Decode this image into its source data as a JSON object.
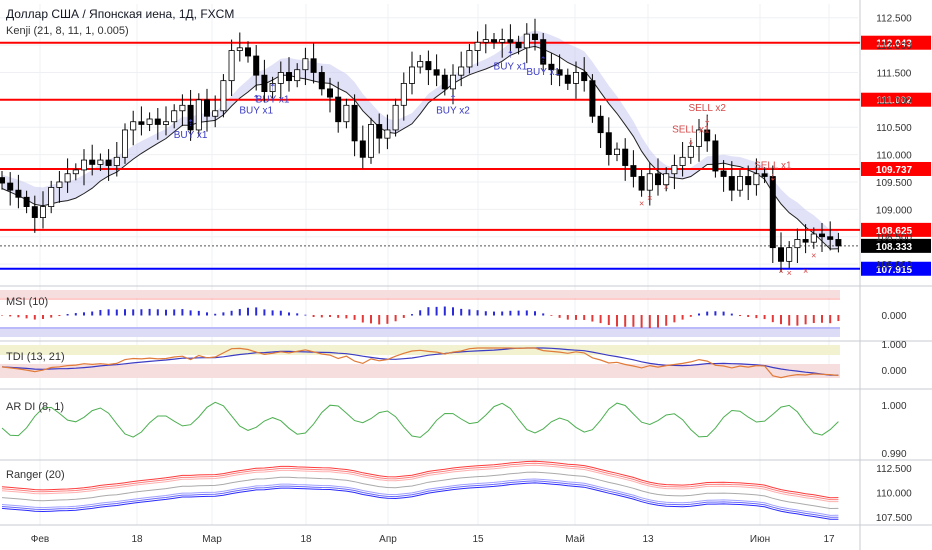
{
  "header": {
    "symbol_title": "Доллар США / Японская иена, 1Д, FXCM",
    "indicator_label": "Kenji (21, 8, 11, 1, 0.005)"
  },
  "colors": {
    "up_candle": "#ffffff",
    "down_candle": "#000000",
    "level_line": "#ff0000",
    "support_line": "#0000ff",
    "cloud_fill": "#c8c8f0",
    "price_label_bg_red": "#ff0000",
    "price_label_bg_blue": "#0000ff",
    "current_label_bg": "#000000"
  },
  "chart_data": [
    {
      "type": "candlestick",
      "title": "Доллар США / Японская иена, 1Д, FXCM",
      "x_ticks": [
        "Фев",
        "18",
        "Мар",
        "18",
        "Апр",
        "15",
        "Май",
        "13",
        "Июн",
        "17"
      ],
      "y_ticks": [
        112.5,
        112.0,
        111.5,
        111.0,
        110.5,
        110.0,
        109.5,
        109.0,
        108.5,
        108.0
      ],
      "ylim": [
        107.6,
        112.75
      ],
      "price_levels": [
        {
          "value": 112.043,
          "label": "112.043",
          "color": "#ff0000"
        },
        {
          "value": 111.002,
          "label": "111.002",
          "color": "#ff0000"
        },
        {
          "value": 109.737,
          "label": "109.737",
          "color": "#ff0000"
        },
        {
          "value": 108.625,
          "label": "108.625",
          "color": "#ff0000"
        },
        {
          "value": 107.915,
          "label": "107.915",
          "color": "#0000ff"
        }
      ],
      "current_price": {
        "value": 108.333,
        "label": "108.333"
      },
      "annotations": [
        {
          "text": "BUY x1",
          "at_index": 23,
          "price": 110.3
        },
        {
          "text": "BUY x1",
          "at_index": 31,
          "price": 110.75
        },
        {
          "text": "BUY x1",
          "at_index": 33,
          "price": 110.95
        },
        {
          "text": "BUY x2",
          "at_index": 55,
          "price": 110.75
        },
        {
          "text": "BUY x1",
          "at_index": 62,
          "price": 111.55
        },
        {
          "text": "BUY x1",
          "at_index": 66,
          "price": 111.45
        },
        {
          "text": "SELL x1",
          "at_index": 84,
          "price": 110.4
        },
        {
          "text": "SELL x2",
          "at_index": 86,
          "price": 110.8
        },
        {
          "text": "SELL x1",
          "at_index": 94,
          "price": 109.75
        }
      ],
      "closes": [
        109.48,
        109.35,
        109.22,
        109.05,
        108.85,
        109.05,
        109.4,
        109.5,
        109.65,
        109.72,
        109.9,
        109.82,
        109.9,
        109.8,
        109.95,
        110.45,
        110.6,
        110.55,
        110.65,
        110.55,
        110.6,
        110.8,
        110.9,
        110.45,
        111.0,
        110.7,
        110.8,
        111.35,
        111.9,
        111.95,
        111.8,
        111.45,
        111.15,
        111.3,
        111.5,
        111.35,
        111.55,
        111.75,
        111.5,
        111.2,
        111.05,
        110.6,
        110.9,
        110.25,
        109.95,
        110.55,
        110.3,
        110.45,
        110.9,
        111.3,
        111.6,
        111.7,
        111.55,
        111.45,
        111.2,
        111.45,
        111.6,
        111.9,
        112.05,
        112.1,
        112.05,
        112.1,
        112.05,
        111.95,
        112.2,
        112.1,
        111.65,
        111.55,
        111.45,
        111.3,
        111.5,
        111.35,
        110.7,
        110.4,
        110.0,
        110.1,
        109.8,
        109.6,
        109.35,
        109.65,
        109.45,
        109.65,
        109.8,
        109.95,
        110.15,
        110.45,
        110.25,
        109.7,
        109.6,
        109.35,
        109.6,
        109.45,
        109.65,
        109.6,
        108.3,
        108.05,
        108.3,
        108.45,
        108.4,
        108.55,
        108.5,
        108.45,
        108.333
      ],
      "series": [
        {
          "name": "MSI",
          "label": "MSI (10)",
          "ytick": "0.000"
        },
        {
          "name": "TDI",
          "label": "TDI (13, 21)",
          "yticks": [
            "1.000",
            "0.000"
          ]
        },
        {
          "name": "AR DI",
          "label": "AR DI (8, 1)",
          "yticks": [
            "1.000",
            "0.990"
          ]
        },
        {
          "name": "Ranger",
          "label": "Ranger (20)",
          "yticks": [
            "112.500",
            "110.000",
            "107.500"
          ]
        }
      ]
    }
  ]
}
